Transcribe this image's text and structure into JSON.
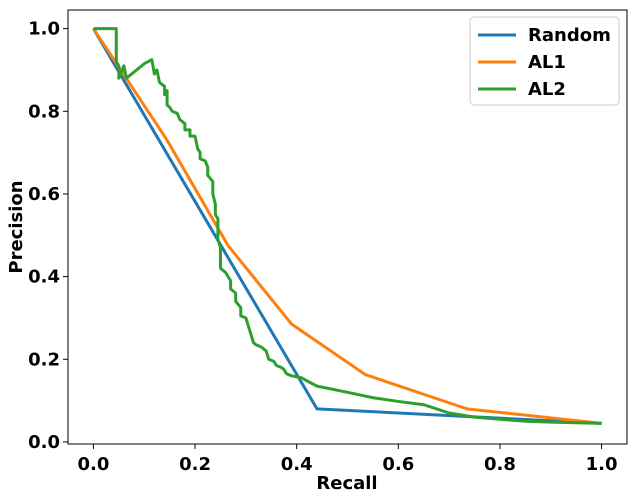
{
  "chart_data": {
    "type": "line",
    "title": "",
    "xlabel": "Recall",
    "ylabel": "Precision",
    "xlim": [
      -0.05,
      1.05
    ],
    "ylim": [
      -0.005,
      1.045
    ],
    "xticks": [
      0.0,
      0.2,
      0.4,
      0.6,
      0.8,
      1.0
    ],
    "xtick_labels": [
      "0.0",
      "0.2",
      "0.4",
      "0.6",
      "0.8",
      "1.0"
    ],
    "yticks": [
      0.0,
      0.2,
      0.4,
      0.6,
      0.8,
      1.0
    ],
    "ytick_labels": [
      "0.0",
      "0.2",
      "0.4",
      "0.6",
      "0.8",
      "1.0"
    ],
    "grid": false,
    "legend_position": "top-right",
    "series": [
      {
        "name": "Random",
        "color": "#1f77b4",
        "points": [
          [
            0.0,
            1.0
          ],
          [
            0.44,
            0.08
          ],
          [
            1.0,
            0.045
          ]
        ]
      },
      {
        "name": "AL1",
        "color": "#ff7f0e",
        "points": [
          [
            0.0,
            1.0
          ],
          [
            0.145,
            0.73
          ],
          [
            0.265,
            0.475
          ],
          [
            0.39,
            0.285
          ],
          [
            0.535,
            0.163
          ],
          [
            0.735,
            0.08
          ],
          [
            1.0,
            0.045
          ]
        ]
      },
      {
        "name": "AL2",
        "color": "#2ca02c",
        "points": [
          [
            0.0,
            1.0
          ],
          [
            0.045,
            1.0
          ],
          [
            0.045,
            0.92
          ],
          [
            0.05,
            0.91
          ],
          [
            0.05,
            0.88
          ],
          [
            0.06,
            0.91
          ],
          [
            0.065,
            0.88
          ],
          [
            0.08,
            0.895
          ],
          [
            0.1,
            0.915
          ],
          [
            0.115,
            0.925
          ],
          [
            0.12,
            0.89
          ],
          [
            0.125,
            0.9
          ],
          [
            0.13,
            0.87
          ],
          [
            0.14,
            0.86
          ],
          [
            0.14,
            0.84
          ],
          [
            0.145,
            0.85
          ],
          [
            0.145,
            0.815
          ],
          [
            0.15,
            0.81
          ],
          [
            0.155,
            0.8
          ],
          [
            0.165,
            0.795
          ],
          [
            0.17,
            0.78
          ],
          [
            0.18,
            0.77
          ],
          [
            0.18,
            0.755
          ],
          [
            0.19,
            0.755
          ],
          [
            0.19,
            0.74
          ],
          [
            0.2,
            0.74
          ],
          [
            0.205,
            0.71
          ],
          [
            0.21,
            0.7
          ],
          [
            0.21,
            0.685
          ],
          [
            0.22,
            0.68
          ],
          [
            0.225,
            0.665
          ],
          [
            0.225,
            0.645
          ],
          [
            0.235,
            0.63
          ],
          [
            0.235,
            0.6
          ],
          [
            0.24,
            0.575
          ],
          [
            0.24,
            0.55
          ],
          [
            0.245,
            0.54
          ],
          [
            0.245,
            0.49
          ],
          [
            0.25,
            0.47
          ],
          [
            0.25,
            0.42
          ],
          [
            0.26,
            0.41
          ],
          [
            0.265,
            0.4
          ],
          [
            0.27,
            0.39
          ],
          [
            0.27,
            0.37
          ],
          [
            0.28,
            0.36
          ],
          [
            0.28,
            0.34
          ],
          [
            0.29,
            0.325
          ],
          [
            0.29,
            0.305
          ],
          [
            0.3,
            0.3
          ],
          [
            0.305,
            0.28
          ],
          [
            0.31,
            0.26
          ],
          [
            0.315,
            0.24
          ],
          [
            0.32,
            0.235
          ],
          [
            0.33,
            0.23
          ],
          [
            0.34,
            0.22
          ],
          [
            0.345,
            0.2
          ],
          [
            0.355,
            0.195
          ],
          [
            0.36,
            0.185
          ],
          [
            0.37,
            0.18
          ],
          [
            0.375,
            0.175
          ],
          [
            0.38,
            0.165
          ],
          [
            0.39,
            0.16
          ],
          [
            0.41,
            0.155
          ],
          [
            0.42,
            0.148
          ],
          [
            0.44,
            0.135
          ],
          [
            0.5,
            0.12
          ],
          [
            0.55,
            0.107
          ],
          [
            0.6,
            0.098
          ],
          [
            0.65,
            0.09
          ],
          [
            0.7,
            0.07
          ],
          [
            0.75,
            0.06
          ],
          [
            0.8,
            0.055
          ],
          [
            0.85,
            0.05
          ],
          [
            0.9,
            0.048
          ],
          [
            1.0,
            0.045
          ]
        ]
      }
    ]
  }
}
